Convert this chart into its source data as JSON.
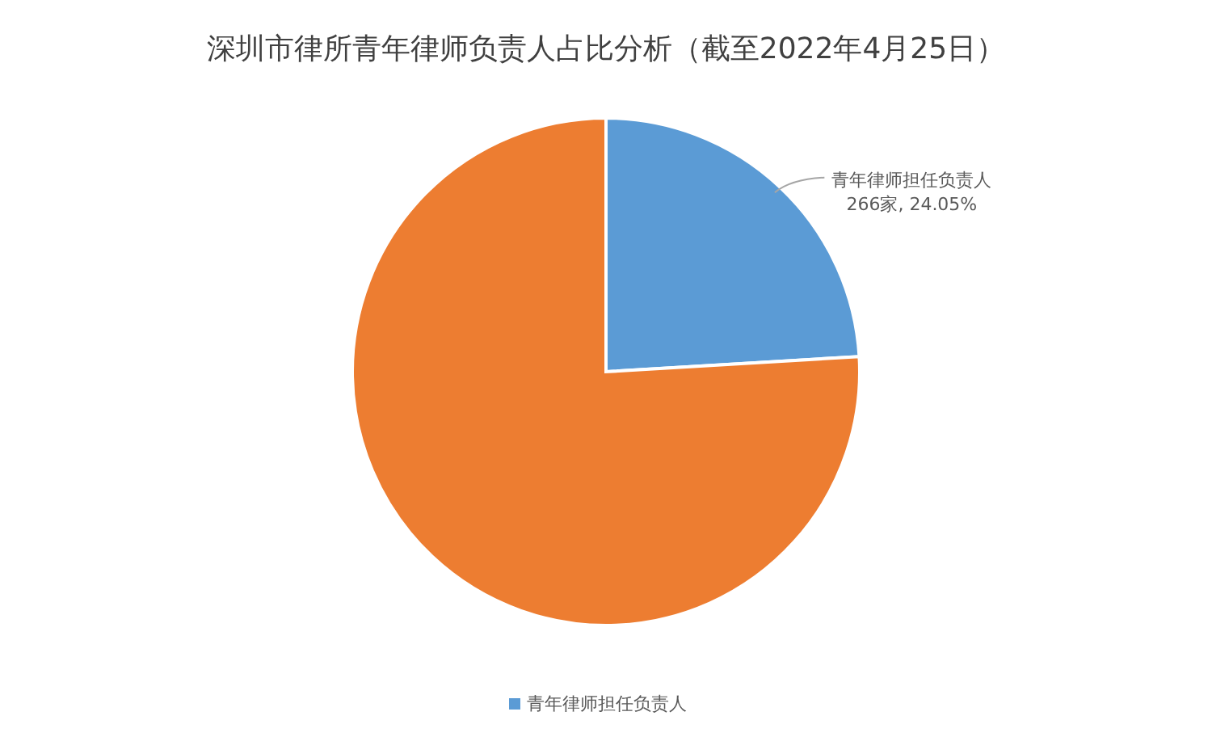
{
  "chart_data": {
    "type": "pie",
    "title": "深圳市律所青年律师负责人占比分析（截至2022年4月25日）",
    "categories": [
      "青年律师担任负责人",
      null
    ],
    "values": [
      24.05,
      75.95
    ],
    "colors": [
      "#5b9bd5",
      "#ed7d31"
    ],
    "value_labels": [
      "266家, 24.05%",
      null
    ],
    "legend": "bottom"
  }
}
